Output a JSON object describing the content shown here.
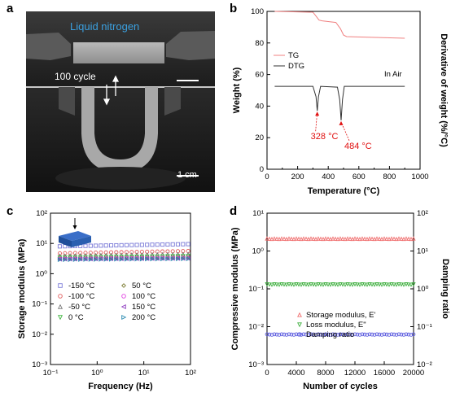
{
  "panels": {
    "a": {
      "label": "a",
      "liquid_label": "Liquid nitrogen",
      "cycle_label": "100 cycle",
      "scalebar_label": "1 cm"
    },
    "b": {
      "label": "b"
    },
    "c": {
      "label": "c"
    },
    "d": {
      "label": "d"
    }
  },
  "colors": {
    "tg": "#f08080",
    "dtg": "#333333",
    "annotation": "#e01010",
    "liquid_text": "#3aa0e0"
  },
  "chart_data": [
    {
      "panel": "b",
      "type": "line",
      "xlabel": "Temperature (°C)",
      "ylabel": "Weight (%)",
      "y2label": "Derivative of weight (%/°C)",
      "xlim": [
        0,
        1000
      ],
      "ylim": [
        0,
        100
      ],
      "xticks": [
        "0",
        "100",
        "200",
        "300",
        "400",
        "500",
        "600",
        "700",
        "800",
        "900",
        "1000"
      ],
      "yticks": [
        "0",
        "20",
        "40",
        "60",
        "80",
        "100"
      ],
      "series": [
        {
          "name": "TG",
          "x": [
            50,
            300,
            320,
            340,
            360,
            450,
            480,
            500,
            520,
            900
          ],
          "y": [
            100,
            99.5,
            97,
            94.5,
            94,
            93,
            89,
            85,
            84,
            83
          ]
        },
        {
          "name": "DTG",
          "x": [
            50,
            300,
            320,
            328,
            336,
            350,
            460,
            475,
            484,
            493,
            505,
            900
          ],
          "y": [
            52.5,
            52.5,
            46,
            37,
            46,
            52.5,
            52,
            44,
            31,
            44,
            52.5,
            52.5
          ]
        }
      ],
      "legend": [
        "TG",
        "DTG"
      ],
      "legend_position": "top-left",
      "note": "In Air",
      "annotations": [
        {
          "text": "328 °C",
          "x": 328,
          "y": 37
        },
        {
          "text": "484 °C",
          "x": 484,
          "y": 31
        }
      ]
    },
    {
      "panel": "c",
      "type": "scatter",
      "xlabel": "Frequency (Hz)",
      "ylabel": "Storage modulus (MPa)",
      "x_scale": "log",
      "y_scale": "log",
      "xlim": [
        0.1,
        100
      ],
      "ylim": [
        0.001,
        100
      ],
      "xticks": [
        "10⁻¹",
        "10⁰",
        "10¹",
        "10²"
      ],
      "yticks": [
        "10⁻³",
        "10⁻²",
        "10⁻¹",
        "10⁰",
        "10¹",
        "10²"
      ],
      "series": [
        {
          "name": "-150 °C",
          "marker": "square",
          "color": "#7b7bd8",
          "values": [
            8.0,
            9.5
          ]
        },
        {
          "name": "-100 °C",
          "marker": "circle",
          "color": "#e05a5a",
          "values": [
            4.7,
            5.6
          ]
        },
        {
          "name": "-50 °C",
          "marker": "triangle-up",
          "color": "#777777",
          "values": [
            3.9,
            4.4
          ]
        },
        {
          "name": "0 °C",
          "marker": "triangle-down",
          "color": "#3fb43f",
          "values": [
            3.4,
            3.8
          ]
        },
        {
          "name": "50 °C",
          "marker": "diamond",
          "color": "#7a7a30",
          "values": [
            3.2,
            3.5
          ]
        },
        {
          "name": "100 °C",
          "marker": "circle",
          "color": "#e040e0",
          "values": [
            3.1,
            3.35
          ]
        },
        {
          "name": "150 °C",
          "marker": "triangle-left",
          "color": "#9040c0",
          "values": [
            3.0,
            3.2
          ]
        },
        {
          "name": "200 °C",
          "marker": "triangle-right",
          "color": "#2a8ab0",
          "values": [
            2.9,
            3.1
          ]
        }
      ]
    },
    {
      "panel": "d",
      "type": "scatter",
      "xlabel": "Number of cycles",
      "ylabel": "Compressive modulus (MPa)",
      "y2label": "Damping ratio",
      "y_scale": "log",
      "xlim": [
        0,
        20000
      ],
      "ylim": [
        0.001,
        10
      ],
      "y2lim": [
        0.01,
        100
      ],
      "xticks": [
        "0",
        "4000",
        "8000",
        "12000",
        "16000",
        "20000"
      ],
      "yticks": [
        "10⁻³",
        "10⁻²",
        "10⁻¹",
        "10⁰",
        "10¹"
      ],
      "y2ticks": [
        "10⁻²",
        "10⁻¹",
        "10⁰",
        "10¹",
        "10²"
      ],
      "series": [
        {
          "name": "Storage modulus, E'",
          "marker": "triangle-up",
          "color": "#f07070",
          "axis": "left",
          "value": 2.1
        },
        {
          "name": "Loss modulus, E\"",
          "marker": "triangle-down",
          "color": "#40b040",
          "axis": "left",
          "value": 0.13
        },
        {
          "name": "Damping ratio",
          "marker": "circle",
          "color": "#6060e0",
          "axis": "right",
          "value": 0.062
        }
      ]
    }
  ]
}
